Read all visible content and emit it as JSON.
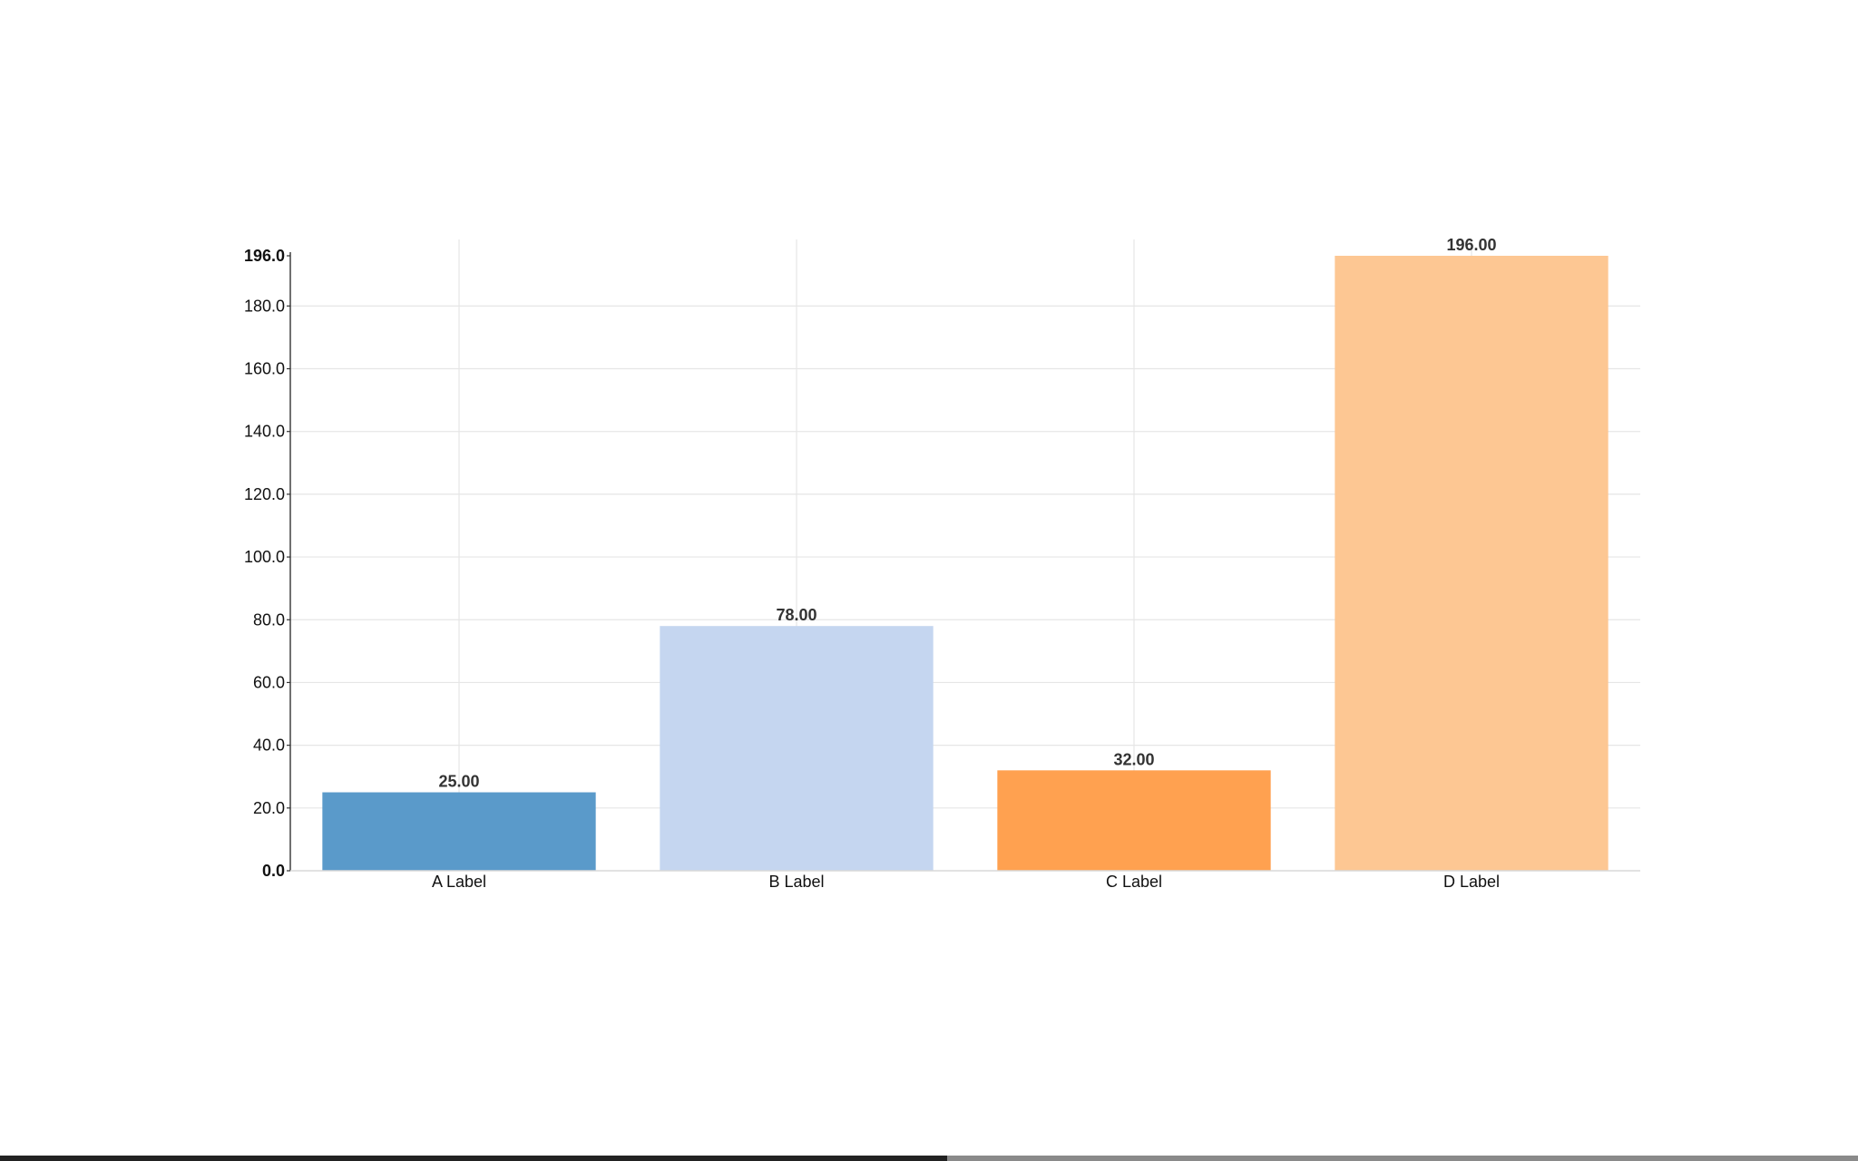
{
  "chart_data": {
    "type": "bar",
    "categories": [
      "A Label",
      "B Label",
      "C Label",
      "D Label"
    ],
    "values": [
      25,
      78,
      32,
      196
    ],
    "value_labels": [
      "25.00",
      "78.00",
      "32.00",
      "196.00"
    ],
    "colors": [
      "#5597c8",
      "#c3d5ef",
      "#ff9e4a",
      "#fdc590"
    ],
    "yticks": [
      0,
      20,
      40,
      60,
      80,
      100,
      120,
      140,
      160,
      180,
      196
    ],
    "ytick_labels": [
      "0.0",
      "20.0",
      "40.0",
      "60.0",
      "80.0",
      "100.0",
      "120.0",
      "140.0",
      "160.0",
      "180.0",
      "196.0"
    ],
    "ylim": [
      0,
      196
    ],
    "grid": true,
    "title": "",
    "xlabel": "",
    "ylabel": ""
  },
  "progress": {
    "fraction": 0.51
  }
}
